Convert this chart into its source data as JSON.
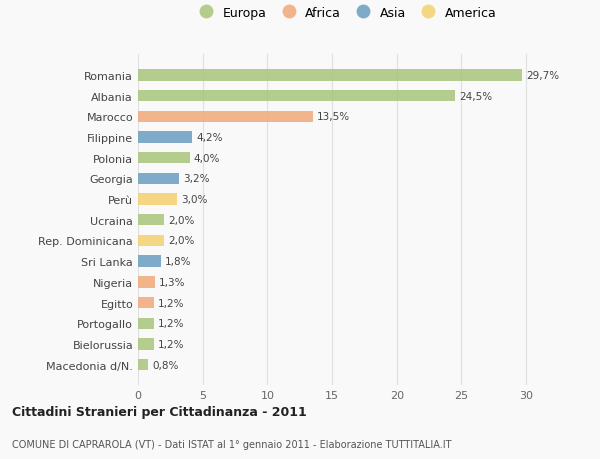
{
  "countries": [
    "Romania",
    "Albania",
    "Marocco",
    "Filippine",
    "Polonia",
    "Georgia",
    "Perù",
    "Ucraina",
    "Rep. Dominicana",
    "Sri Lanka",
    "Nigeria",
    "Egitto",
    "Portogallo",
    "Bielorussia",
    "Macedonia d/N."
  ],
  "values": [
    29.7,
    24.5,
    13.5,
    4.2,
    4.0,
    3.2,
    3.0,
    2.0,
    2.0,
    1.8,
    1.3,
    1.2,
    1.2,
    1.2,
    0.8
  ],
  "labels": [
    "29,7%",
    "24,5%",
    "13,5%",
    "4,2%",
    "4,0%",
    "3,2%",
    "3,0%",
    "2,0%",
    "2,0%",
    "1,8%",
    "1,3%",
    "1,2%",
    "1,2%",
    "1,2%",
    "0,8%"
  ],
  "continents": [
    "Europa",
    "Europa",
    "Africa",
    "Asia",
    "Europa",
    "Asia",
    "America",
    "Europa",
    "America",
    "Asia",
    "Africa",
    "Africa",
    "Europa",
    "Europa",
    "Europa"
  ],
  "colors": {
    "Europa": "#a8c57a",
    "Africa": "#f0aa78",
    "Asia": "#6b9dc2",
    "America": "#f5d06e"
  },
  "legend_order": [
    "Europa",
    "Africa",
    "Asia",
    "America"
  ],
  "title": "Cittadini Stranieri per Cittadinanza - 2011",
  "subtitle": "COMUNE DI CAPRAROLA (VT) - Dati ISTAT al 1° gennaio 2011 - Elaborazione TUTTITALIA.IT",
  "xlim": [
    0,
    32
  ],
  "xticks": [
    0,
    5,
    10,
    15,
    20,
    25,
    30
  ],
  "background_color": "#f9f9f9",
  "grid_color": "#e0e0e0"
}
